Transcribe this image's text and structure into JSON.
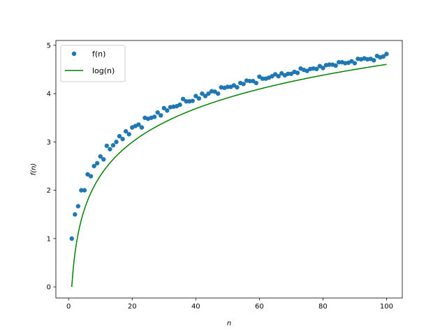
{
  "chart_data": {
    "type": "scatter",
    "xlabel": "n",
    "ylabel": "f(n)",
    "xlim": [
      -4.0,
      104.95
    ],
    "ylim": [
      -0.23,
      5.1
    ],
    "xticks": [
      0,
      20,
      40,
      60,
      80,
      100
    ],
    "xtick_labels": [
      "0",
      "20",
      "40",
      "60",
      "80",
      "100"
    ],
    "yticks": [
      0,
      1,
      2,
      3,
      4,
      5
    ],
    "ytick_labels": [
      "0",
      "1",
      "2",
      "3",
      "4",
      "5"
    ],
    "grid": false,
    "legend_position": "top-left",
    "colors": {
      "scatter": "#1f77b4",
      "line": "#008000"
    },
    "series": [
      {
        "name": "f(n)",
        "kind": "scatter",
        "x": [
          1,
          2,
          3,
          4,
          5,
          6,
          7,
          8,
          9,
          10,
          11,
          12,
          13,
          14,
          15,
          16,
          17,
          18,
          19,
          20,
          21,
          22,
          23,
          24,
          25,
          26,
          27,
          28,
          29,
          30,
          31,
          32,
          33,
          34,
          35,
          36,
          37,
          38,
          39,
          40,
          41,
          42,
          43,
          44,
          45,
          46,
          47,
          48,
          49,
          50,
          51,
          52,
          53,
          54,
          55,
          56,
          57,
          58,
          59,
          60,
          61,
          62,
          63,
          64,
          65,
          66,
          67,
          68,
          69,
          70,
          71,
          72,
          73,
          74,
          75,
          76,
          77,
          78,
          79,
          80,
          81,
          82,
          83,
          84,
          85,
          86,
          87,
          88,
          89,
          90,
          91,
          92,
          93,
          94,
          95,
          96,
          97,
          98,
          99,
          100
        ],
        "values": [
          1.0,
          1.5,
          1.67,
          2.0,
          2.0,
          2.33,
          2.29,
          2.5,
          2.56,
          2.7,
          2.64,
          2.92,
          2.85,
          2.93,
          3.0,
          3.12,
          3.06,
          3.22,
          3.16,
          3.3,
          3.33,
          3.36,
          3.3,
          3.5,
          3.48,
          3.5,
          3.52,
          3.61,
          3.55,
          3.7,
          3.65,
          3.72,
          3.73,
          3.74,
          3.77,
          3.89,
          3.84,
          3.84,
          3.85,
          3.95,
          3.9,
          4.0,
          3.95,
          4.0,
          4.05,
          4.04,
          4.0,
          4.13,
          4.12,
          4.14,
          4.14,
          4.17,
          4.13,
          4.22,
          4.2,
          4.27,
          4.26,
          4.26,
          4.22,
          4.35,
          4.31,
          4.31,
          4.33,
          4.36,
          4.4,
          4.36,
          4.42,
          4.38,
          4.41,
          4.41,
          4.45,
          4.43,
          4.52,
          4.49,
          4.47,
          4.51,
          4.52,
          4.51,
          4.57,
          4.53,
          4.59,
          4.6,
          4.6,
          4.58,
          4.65,
          4.65,
          4.63,
          4.64,
          4.67,
          4.63,
          4.72,
          4.71,
          4.73,
          4.71,
          4.72,
          4.69,
          4.78,
          4.75,
          4.77,
          4.82
        ]
      },
      {
        "name": "log(n)",
        "kind": "line",
        "function": "ln",
        "x_range": [
          1,
          100
        ]
      }
    ]
  }
}
